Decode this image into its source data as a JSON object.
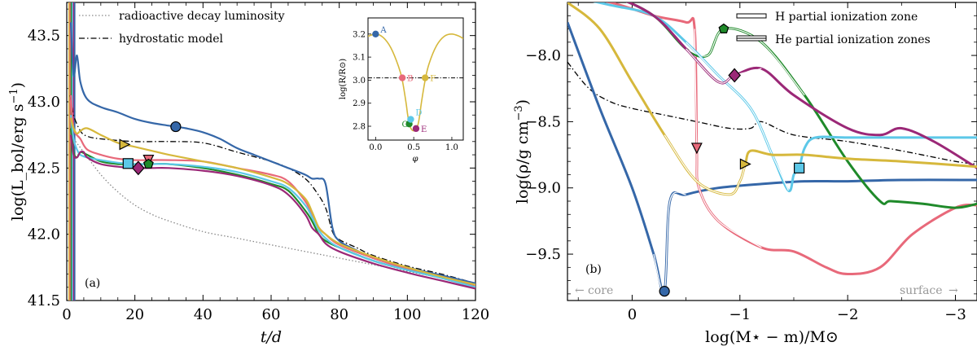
{
  "chart_data": [
    {
      "type": "line",
      "panel_label": "(a)",
      "xlabel": "t/d",
      "ylabel": "log(L_bol/erg s^-1)",
      "xlim": [
        0,
        120
      ],
      "ylim": [
        41.5,
        43.75
      ],
      "x_ticks": [
        0,
        20,
        40,
        60,
        80,
        100,
        120
      ],
      "y_ticks": [
        41.5,
        42.0,
        42.5,
        43.0,
        43.5
      ],
      "legend": [
        "radioactive decay luminosity",
        "hydrostatic model"
      ],
      "legend_position": "top-left",
      "colors": {
        "A": "#3567a8",
        "B": "#e8697a",
        "C": "#1f8a2a",
        "D": "#5cc8e8",
        "E": "#9b2877",
        "F": "#d6b83c",
        "ref": "#000000",
        "decay": "#888888"
      },
      "series": [
        {
          "name": "radioactive decay luminosity",
          "style": "dotted",
          "x": [
            2,
            5,
            10,
            15,
            20,
            25,
            30,
            40,
            50,
            60,
            70,
            80,
            90,
            100,
            110,
            120
          ],
          "y": [
            42.72,
            42.62,
            42.45,
            42.32,
            42.22,
            42.15,
            42.1,
            42.02,
            41.97,
            41.92,
            41.87,
            41.82,
            41.77,
            41.72,
            41.67,
            41.61
          ]
        },
        {
          "name": "hydrostatic model",
          "style": "dashdot",
          "x": [
            1,
            2,
            4,
            6,
            10,
            20,
            30,
            40,
            50,
            60,
            65,
            70,
            73,
            76,
            78,
            80,
            85,
            90,
            100,
            110,
            120
          ],
          "y": [
            43.05,
            42.9,
            42.78,
            42.74,
            42.72,
            42.7,
            42.7,
            42.69,
            42.62,
            42.55,
            42.5,
            42.42,
            42.33,
            42.2,
            42.02,
            41.96,
            41.9,
            41.84,
            41.76,
            41.7,
            41.63
          ]
        },
        {
          "name": "A",
          "marker": "circle",
          "marker_x": 32,
          "x": [
            1.2,
            2,
            3,
            4,
            6,
            10,
            15,
            20,
            25,
            30,
            35,
            40,
            45,
            50,
            55,
            60,
            65,
            70,
            72,
            74,
            76,
            78,
            80,
            85,
            90,
            100,
            110,
            120
          ],
          "y": [
            43.6,
            43.2,
            43.35,
            43.15,
            43.02,
            42.96,
            42.92,
            42.87,
            42.84,
            42.82,
            42.8,
            42.77,
            42.72,
            42.65,
            42.6,
            42.55,
            42.5,
            42.45,
            42.42,
            42.42,
            42.38,
            42.05,
            41.95,
            41.88,
            41.82,
            41.75,
            41.69,
            41.63
          ]
        },
        {
          "name": "B",
          "marker": "triangle-down",
          "marker_x": 24,
          "x": [
            1.2,
            2,
            4,
            6,
            10,
            15,
            20,
            25,
            30,
            40,
            50,
            60,
            65,
            70,
            72,
            74,
            76,
            80,
            90,
            100,
            110,
            120
          ],
          "y": [
            43.05,
            42.8,
            42.72,
            42.64,
            42.6,
            42.57,
            42.56,
            42.56,
            42.56,
            42.55,
            42.5,
            42.45,
            42.4,
            42.25,
            42.15,
            42.05,
            42.0,
            41.92,
            41.82,
            41.74,
            41.68,
            41.61
          ]
        },
        {
          "name": "C",
          "marker": "pentagon",
          "marker_x": 24,
          "x": [
            1.2,
            2,
            3,
            4,
            6,
            10,
            15,
            20,
            25,
            30,
            40,
            50,
            60,
            65,
            70,
            72,
            74,
            76,
            80,
            90,
            100,
            110,
            120
          ],
          "y": [
            42.8,
            42.62,
            42.58,
            42.62,
            42.6,
            42.55,
            42.53,
            42.53,
            42.53,
            42.53,
            42.5,
            42.45,
            42.38,
            42.33,
            42.18,
            42.1,
            42.0,
            41.95,
            41.9,
            41.8,
            41.73,
            41.67,
            41.6
          ]
        },
        {
          "name": "D",
          "marker": "square",
          "marker_x": 18,
          "x": [
            1.2,
            2,
            3,
            4,
            6,
            10,
            15,
            20,
            25,
            30,
            40,
            50,
            60,
            65,
            70,
            72,
            74,
            76,
            80,
            90,
            100,
            110,
            120
          ],
          "y": [
            42.9,
            42.72,
            42.64,
            42.6,
            42.58,
            42.56,
            42.54,
            42.53,
            42.53,
            42.53,
            42.51,
            42.47,
            42.4,
            42.35,
            42.22,
            42.13,
            42.03,
            41.97,
            41.9,
            41.8,
            41.73,
            41.67,
            41.6
          ]
        },
        {
          "name": "E",
          "marker": "diamond",
          "marker_x": 21,
          "x": [
            1.2,
            2,
            3,
            4,
            5,
            6,
            10,
            15,
            20,
            25,
            30,
            40,
            50,
            60,
            65,
            70,
            72,
            74,
            76,
            80,
            90,
            100,
            110,
            120
          ],
          "y": [
            42.75,
            42.6,
            42.58,
            42.62,
            42.62,
            42.58,
            42.53,
            42.51,
            42.5,
            42.5,
            42.5,
            42.48,
            42.44,
            42.37,
            42.3,
            42.15,
            42.05,
            42.0,
            41.93,
            41.87,
            41.78,
            41.71,
            41.65,
            41.59
          ]
        },
        {
          "name": "F",
          "marker": "triangle-right",
          "marker_x": 17,
          "x": [
            1.2,
            2,
            3,
            4,
            6,
            10,
            15,
            20,
            25,
            30,
            40,
            50,
            60,
            65,
            70,
            72,
            74,
            76,
            80,
            90,
            100,
            110,
            120
          ],
          "y": [
            42.88,
            42.8,
            42.76,
            42.78,
            42.8,
            42.75,
            42.69,
            42.66,
            42.63,
            42.6,
            42.55,
            42.5,
            42.43,
            42.38,
            42.27,
            42.17,
            42.05,
            42.0,
            41.93,
            41.83,
            41.75,
            41.68,
            41.62
          ]
        }
      ],
      "inset": {
        "xlabel": "φ",
        "ylabel": "log(R/R⊙)",
        "xlim": [
          -0.1,
          1.15
        ],
        "ylim": [
          2.74,
          3.27
        ],
        "x_ticks": [
          0.0,
          0.5,
          1.0
        ],
        "y_ticks": [
          2.8,
          2.9,
          3.0,
          3.1,
          3.2
        ],
        "reference_level": 3.01,
        "curve": {
          "x": [
            -0.1,
            0.0,
            0.1,
            0.2,
            0.3,
            0.35,
            0.4,
            0.42,
            0.45,
            0.5,
            0.55,
            0.58,
            0.6,
            0.65,
            0.7,
            0.8,
            0.9,
            1.0,
            1.1,
            1.15
          ],
          "y": [
            3.19,
            3.2,
            3.185,
            3.14,
            3.06,
            3.0,
            2.9,
            2.85,
            2.8,
            2.78,
            2.8,
            2.85,
            2.9,
            3.0,
            3.07,
            3.15,
            3.19,
            3.2,
            3.19,
            3.18
          ]
        },
        "points": [
          {
            "label": "A",
            "x": 0.0,
            "y": 3.2
          },
          {
            "label": "B",
            "x": 0.35,
            "y": 3.01
          },
          {
            "label": "C",
            "x": 0.44,
            "y": 2.81
          },
          {
            "label": "D",
            "x": 0.46,
            "y": 2.83
          },
          {
            "label": "E",
            "x": 0.53,
            "y": 2.79
          },
          {
            "label": "F",
            "x": 0.65,
            "y": 3.01
          }
        ]
      }
    },
    {
      "type": "line",
      "panel_label": "(b)",
      "xlabel": "log(M⋆ − m)/M⊙",
      "ylabel": "log(ρ/g cm^-3)",
      "xlim": [
        0.6,
        -3.2
      ],
      "ylim": [
        -9.85,
        -7.6
      ],
      "x_ticks": [
        0,
        -1,
        -2,
        -3
      ],
      "x_tick_labels": [
        "0",
        "−1",
        "−2",
        "−3"
      ],
      "y_ticks": [
        -8.0,
        -8.5,
        -9.0,
        -9.5
      ],
      "y_tick_labels": [
        "−8.0",
        "−8.5",
        "−9.0",
        "−9.5"
      ],
      "legend": [
        "H partial ionization zone",
        "He partial ionization zones"
      ],
      "legend_position": "top-right",
      "annotations": [
        "core",
        "surface"
      ],
      "series": [
        {
          "name": "hydrostatic model",
          "style": "dashdot",
          "x": [
            0.6,
            0.4,
            0.2,
            0.0,
            -0.3,
            -0.6,
            -0.9,
            -1.1,
            -1.2,
            -1.5,
            -2.0,
            -2.5,
            -3.0,
            -3.2
          ],
          "y": [
            -8.05,
            -8.25,
            -8.35,
            -8.4,
            -8.45,
            -8.5,
            -8.55,
            -8.55,
            -8.5,
            -8.6,
            -8.65,
            -8.72,
            -8.8,
            -8.82
          ]
        },
        {
          "name": "A",
          "marker_x": -0.3,
          "x": [
            0.6,
            0.3,
            0.0,
            -0.2,
            -0.3,
            -0.35,
            -0.5,
            -0.8,
            -1.2,
            -1.6,
            -2.0,
            -2.5,
            -3.2
          ],
          "y": [
            -7.75,
            -8.4,
            -9.0,
            -9.5,
            -9.78,
            -9.1,
            -9.05,
            -9.0,
            -8.97,
            -8.95,
            -8.95,
            -8.94,
            -8.94
          ]
        },
        {
          "name": "B",
          "marker_x": -0.6,
          "x": [
            0.6,
            0.2,
            -0.2,
            -0.5,
            -0.58,
            -0.6,
            -0.62,
            -0.8,
            -1.2,
            -1.5,
            -1.8,
            -2.0,
            -2.3,
            -2.6,
            -3.0,
            -3.2
          ],
          "y": [
            -7.55,
            -7.6,
            -7.7,
            -7.75,
            -7.8,
            -8.7,
            -9.0,
            -9.25,
            -9.45,
            -9.48,
            -9.6,
            -9.65,
            -9.6,
            -9.35,
            -9.15,
            -9.13
          ]
        },
        {
          "name": "C",
          "marker_x": -0.85,
          "x": [
            0.6,
            0.2,
            -0.2,
            -0.5,
            -0.7,
            -0.85,
            -1.2,
            -1.6,
            -2.0,
            -2.3,
            -2.4,
            -2.7,
            -3.0,
            -3.2
          ],
          "y": [
            -7.5,
            -7.55,
            -7.7,
            -7.95,
            -8.0,
            -7.8,
            -7.9,
            -8.3,
            -8.8,
            -9.1,
            -9.1,
            -9.12,
            -9.15,
            -9.12
          ]
        },
        {
          "name": "D",
          "marker_x": -1.55,
          "x": [
            0.6,
            0.2,
            -0.2,
            -0.5,
            -0.8,
            -1.1,
            -1.3,
            -1.45,
            -1.5,
            -1.55,
            -1.6,
            -1.7,
            -2.0,
            -2.5,
            -3.2
          ],
          "y": [
            -7.55,
            -7.62,
            -7.7,
            -7.9,
            -8.15,
            -8.4,
            -8.75,
            -9.02,
            -8.9,
            -8.85,
            -8.7,
            -8.62,
            -8.62,
            -8.62,
            -8.62
          ]
        },
        {
          "name": "E",
          "marker_x": -0.95,
          "x": [
            0.6,
            0.2,
            -0.2,
            -0.5,
            -0.8,
            -0.95,
            -1.2,
            -1.5,
            -2.0,
            -2.3,
            -2.5,
            -2.8,
            -3.2
          ],
          "y": [
            -7.5,
            -7.55,
            -7.7,
            -7.95,
            -8.2,
            -8.15,
            -8.1,
            -8.3,
            -8.55,
            -8.6,
            -8.55,
            -8.65,
            -8.85
          ]
        },
        {
          "name": "F",
          "marker_x": -1.05,
          "x": [
            0.6,
            0.3,
            0.0,
            -0.3,
            -0.6,
            -0.9,
            -1.0,
            -1.05,
            -1.1,
            -1.3,
            -1.6,
            -2.0,
            -2.5,
            -3.2
          ],
          "y": [
            -7.6,
            -7.8,
            -8.2,
            -8.6,
            -8.95,
            -9.05,
            -8.95,
            -8.82,
            -8.72,
            -8.75,
            -8.75,
            -8.78,
            -8.8,
            -8.84
          ]
        }
      ]
    }
  ]
}
